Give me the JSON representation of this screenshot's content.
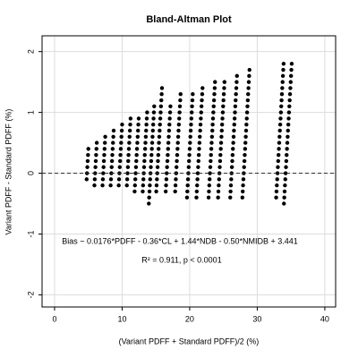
{
  "chart_data": {
    "type": "scatter",
    "title": "Bland-Altman Plot",
    "x_label": "(Variant PDFF + Standard PDFF)/2 (%)",
    "y_label": "Variant PDFF - Standard PDFF (%)",
    "annotations": [
      "Bias ~ 0.0176*PDFF - 0.36*CL + 1.44*NDB - 0.50*NMIDB + 3.441",
      "R² = 0.911, p < 0.0001"
    ],
    "xlim": [
      -1.85,
      41.6
    ],
    "ylim": [
      -2.2,
      2.26
    ],
    "xticks": [
      0,
      10,
      20,
      30,
      40
    ],
    "yticks": [
      -2,
      -1,
      0,
      1,
      2
    ],
    "grid": true,
    "reference_line": 0,
    "color": "#000000",
    "x": [
      4.75,
      4.8,
      4.85,
      4.9,
      4.95,
      5,
      5.9,
      5.95,
      6,
      6.05,
      6.1,
      6.15,
      6.2,
      6.25,
      7.1,
      7.15,
      7.2,
      7.25,
      7.3,
      7.35,
      7.4,
      7.45,
      7.5,
      8.3,
      8.35,
      8.4,
      8.45,
      8.5,
      8.55,
      8.6,
      8.65,
      8.7,
      8.75,
      9.5,
      9.55,
      9.6,
      9.65,
      9.7,
      9.75,
      9.8,
      9.85,
      9.9,
      9.95,
      10,
      10.7,
      10.75,
      10.8,
      10.85,
      10.9,
      10.95,
      11,
      11.05,
      11.1,
      11.15,
      11.2,
      11.25,
      11.85,
      11.9,
      11.95,
      12,
      12.05,
      12.1,
      12.15,
      12.2,
      12.25,
      12.3,
      12.35,
      12.4,
      12.45,
      13.05,
      13.1,
      13.15,
      13.2,
      13.25,
      13.3,
      13.35,
      13.4,
      13.45,
      13.5,
      13.55,
      13.6,
      13.65,
      13.7,
      13.95,
      14,
      14.05,
      14.1,
      14.15,
      14.2,
      14.25,
      14.3,
      14.35,
      14.4,
      14.45,
      14.5,
      14.55,
      14.6,
      14.65,
      14.7,
      14.75,
      15.05,
      15.1,
      15.15,
      15.2,
      15.25,
      15.3,
      15.35,
      15.4,
      15.45,
      15.5,
      15.55,
      15.6,
      15.65,
      15.7,
      15.75,
      15.8,
      15.85,
      15.9,
      16.45,
      16.5,
      16.55,
      16.6,
      16.65,
      16.7,
      16.75,
      16.8,
      16.85,
      16.9,
      16.95,
      17,
      17.05,
      17.1,
      17.15,
      17.85,
      17.9,
      17.95,
      18,
      18.05,
      18.1,
      18.15,
      18.2,
      18.25,
      18.3,
      18.35,
      18.4,
      18.45,
      18.5,
      18.55,
      18.6,
      18.65,
      19.6,
      19.65,
      19.7,
      19.75,
      19.8,
      19.85,
      19.9,
      19.95,
      20,
      20.05,
      20.1,
      20.15,
      20.2,
      20.25,
      20.3,
      20.35,
      20.4,
      20.45,
      21,
      21.05,
      21.1,
      21.15,
      21.2,
      21.25,
      21.3,
      21.35,
      21.4,
      21.45,
      21.5,
      21.55,
      21.6,
      21.65,
      21.7,
      21.75,
      21.8,
      21.85,
      21.9,
      22.8,
      22.85,
      22.9,
      22.95,
      23,
      23.05,
      23.1,
      23.15,
      23.2,
      23.25,
      23.3,
      23.35,
      23.4,
      23.45,
      23.5,
      23.55,
      23.6,
      23.65,
      23.7,
      23.75,
      24.2,
      24.25,
      24.3,
      24.35,
      24.4,
      24.45,
      24.5,
      24.55,
      24.6,
      24.65,
      24.7,
      24.75,
      24.8,
      24.85,
      24.9,
      24.95,
      25,
      25.05,
      25.1,
      25.15,
      26,
      26.05,
      26.1,
      26.15,
      26.2,
      26.25,
      26.3,
      26.35,
      26.4,
      26.45,
      26.5,
      26.55,
      26.6,
      26.65,
      26.7,
      26.75,
      26.8,
      26.85,
      26.9,
      26.95,
      27,
      27.8,
      27.85,
      27.9,
      27.95,
      28,
      28.05,
      28.1,
      28.15,
      28.2,
      28.25,
      28.3,
      28.35,
      28.4,
      28.45,
      28.5,
      28.55,
      28.6,
      28.65,
      28.7,
      28.75,
      28.8,
      28.85,
      32.8,
      32.85,
      32.9,
      32.95,
      33,
      33.05,
      33.1,
      33.15,
      33.2,
      33.25,
      33.3,
      33.35,
      33.4,
      33.45,
      33.5,
      33.55,
      33.6,
      33.65,
      33.7,
      33.75,
      33.8,
      33.85,
      33.9,
      33.95,
      34,
      34.05,
      34.1,
      34.15,
      34.2,
      34.25,
      34.3,
      34.35,
      34.4,
      34.45,
      34.5,
      34.55,
      34.6,
      34.65,
      34.7,
      34.75,
      34.8,
      34.85,
      34.9,
      34.95,
      35,
      35.05,
      35.1
    ],
    "y": [
      -0.1,
      0,
      0.1,
      0.2,
      0.3,
      0.4,
      -0.2,
      -0.1,
      0,
      0.1,
      0.2,
      0.3,
      0.4,
      0.5,
      -0.2,
      -0.1,
      0,
      0.1,
      0.2,
      0.3,
      0.4,
      0.5,
      0.6,
      -0.2,
      -0.1,
      0,
      0.1,
      0.2,
      0.3,
      0.4,
      0.5,
      0.6,
      0.7,
      -0.2,
      -0.1,
      0,
      0.1,
      0.2,
      0.3,
      0.4,
      0.5,
      0.6,
      0.7,
      0.8,
      -0.2,
      -0.1,
      0,
      0.1,
      0.2,
      0.3,
      0.4,
      0.5,
      0.6,
      0.7,
      0.8,
      0.9,
      -0.3,
      -0.2,
      -0.1,
      0,
      0.1,
      0.2,
      0.3,
      0.4,
      0.5,
      0.6,
      0.7,
      0.8,
      0.9,
      -0.3,
      -0.2,
      -0.1,
      0,
      0.1,
      0.2,
      0.3,
      0.4,
      0.5,
      0.6,
      0.7,
      0.8,
      0.9,
      1,
      -0.5,
      -0.4,
      -0.3,
      -0.2,
      -0.1,
      0,
      0.1,
      0.2,
      0.3,
      0.4,
      0.5,
      0.6,
      0.7,
      0.8,
      0.9,
      1,
      1.1,
      -0.3,
      -0.2,
      -0.1,
      0,
      0.1,
      0.2,
      0.3,
      0.4,
      0.5,
      0.6,
      0.7,
      0.8,
      0.9,
      1,
      1.1,
      1.2,
      1.3,
      1.4,
      -0.3,
      -0.2,
      -0.1,
      0,
      0.1,
      0.2,
      0.3,
      0.4,
      0.5,
      0.6,
      0.7,
      0.8,
      0.9,
      1,
      1.1,
      -0.3,
      -0.2,
      -0.1,
      0,
      0.1,
      0.2,
      0.3,
      0.4,
      0.5,
      0.6,
      0.7,
      0.8,
      0.9,
      1,
      1.1,
      1.2,
      1.3,
      -0.4,
      -0.3,
      -0.2,
      -0.1,
      0,
      0.1,
      0.2,
      0.3,
      0.4,
      0.5,
      0.6,
      0.7,
      0.8,
      0.9,
      1,
      1.1,
      1.2,
      1.3,
      -0.4,
      -0.3,
      -0.2,
      -0.1,
      0,
      0.1,
      0.2,
      0.3,
      0.4,
      0.5,
      0.6,
      0.7,
      0.8,
      0.9,
      1,
      1.1,
      1.2,
      1.3,
      1.4,
      -0.4,
      -0.3,
      -0.2,
      -0.1,
      0,
      0.1,
      0.2,
      0.3,
      0.4,
      0.5,
      0.6,
      0.7,
      0.8,
      0.9,
      1,
      1.1,
      1.2,
      1.3,
      1.4,
      1.5,
      -0.4,
      -0.3,
      -0.2,
      -0.1,
      0,
      0.1,
      0.2,
      0.3,
      0.4,
      0.5,
      0.6,
      0.7,
      0.8,
      0.9,
      1,
      1.1,
      1.2,
      1.3,
      1.4,
      1.5,
      -0.4,
      -0.3,
      -0.2,
      -0.1,
      0,
      0.1,
      0.2,
      0.3,
      0.4,
      0.5,
      0.6,
      0.7,
      0.8,
      0.9,
      1,
      1.1,
      1.2,
      1.3,
      1.4,
      1.5,
      1.6,
      -0.4,
      -0.3,
      -0.2,
      -0.1,
      0,
      0.1,
      0.2,
      0.3,
      0.4,
      0.5,
      0.6,
      0.7,
      0.8,
      0.9,
      1,
      1.1,
      1.2,
      1.3,
      1.4,
      1.5,
      1.6,
      1.7,
      -0.4,
      -0.3,
      -0.2,
      -0.1,
      0,
      0.1,
      0.2,
      0.3,
      0.4,
      0.5,
      0.6,
      0.7,
      0.8,
      0.9,
      1,
      1.1,
      1.2,
      1.3,
      1.4,
      1.5,
      1.6,
      1.7,
      1.8,
      -0.5,
      -0.4,
      -0.3,
      -0.2,
      -0.1,
      0,
      0.1,
      0.2,
      0.3,
      0.4,
      0.5,
      0.6,
      0.7,
      0.8,
      0.9,
      1,
      1.1,
      1.2,
      1.3,
      1.4,
      1.5,
      1.6,
      1.7,
      1.8
    ]
  }
}
